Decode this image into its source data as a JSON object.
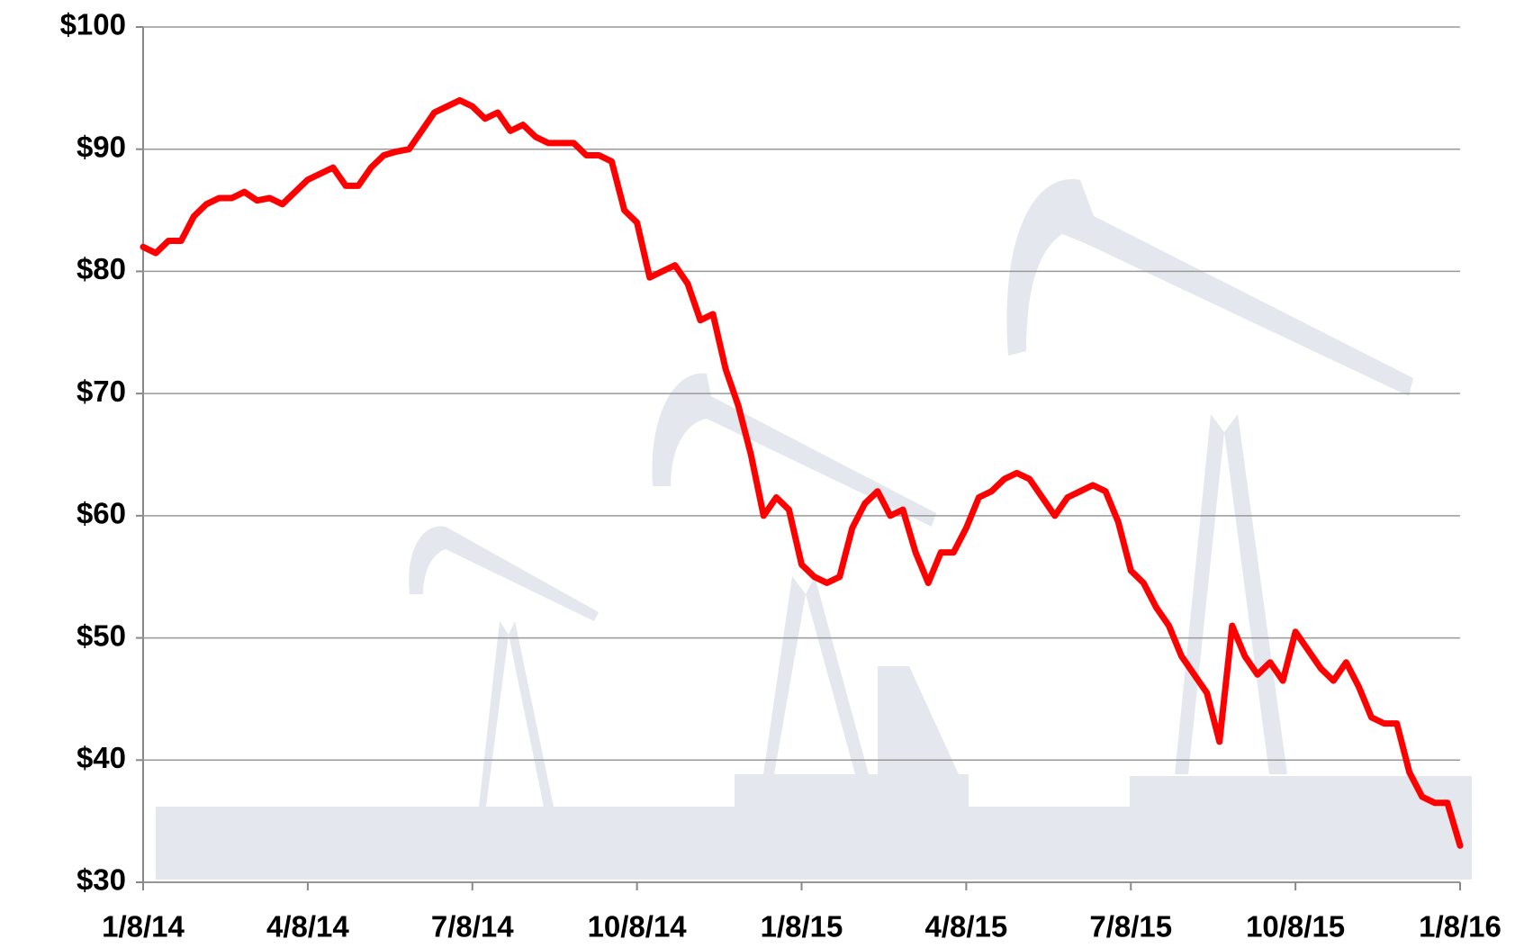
{
  "chart_data": {
    "type": "line",
    "categories": [
      "1/8/14",
      null,
      null,
      null,
      null,
      null,
      null,
      null,
      null,
      null,
      null,
      null,
      null,
      "4/8/14",
      null,
      null,
      null,
      null,
      null,
      null,
      null,
      null,
      null,
      null,
      null,
      null,
      "7/8/14",
      null,
      null,
      null,
      null,
      null,
      null,
      null,
      null,
      null,
      null,
      null,
      null,
      "10/8/14",
      null,
      null,
      null,
      null,
      null,
      null,
      null,
      null,
      null,
      null,
      null,
      null,
      "1/8/15",
      null,
      null,
      null,
      null,
      null,
      null,
      null,
      null,
      null,
      null,
      null,
      null,
      "4/8/15",
      null,
      null,
      null,
      null,
      null,
      null,
      null,
      null,
      null,
      null,
      null,
      null,
      "7/8/15",
      null,
      null,
      null,
      null,
      null,
      null,
      null,
      null,
      null,
      null,
      null,
      null,
      "10/8/15",
      null,
      null,
      null,
      null,
      null,
      null,
      null,
      null,
      null,
      null,
      null,
      null,
      "1/8/16"
    ],
    "series": [
      {
        "color": "#ff0000",
        "values": [
          82,
          81.5,
          82.5,
          82.5,
          84.5,
          85.5,
          86,
          86,
          86.5,
          85.8,
          86,
          85.5,
          86.5,
          87.5,
          88,
          88.5,
          87,
          87,
          88.5,
          89.5,
          89.8,
          90,
          91.5,
          93,
          93.5,
          94,
          93.5,
          92.5,
          93,
          91.5,
          92,
          91,
          90.5,
          90.5,
          90.5,
          89.5,
          89.5,
          89,
          85,
          84,
          79.5,
          80,
          80.5,
          79,
          76,
          76.5,
          72,
          69,
          65,
          60,
          61.5,
          60.5,
          56,
          55,
          54.5,
          55,
          59,
          61,
          62,
          60,
          60.5,
          57,
          54.5,
          57,
          57,
          59,
          61.5,
          62,
          63,
          63.5,
          63,
          61.5,
          60,
          61.5,
          62,
          62.5,
          62,
          59.5,
          55.5,
          54.5,
          52.5,
          51,
          48.5,
          47,
          45.5,
          41.5,
          51,
          48.5,
          47,
          48,
          46.5,
          50.5,
          49,
          47.5,
          46.5,
          48,
          46,
          43.5,
          43,
          43,
          39,
          37,
          36.5,
          36.5,
          33
        ]
      }
    ],
    "ylim": [
      30,
      100
    ],
    "yticks": [
      {
        "value": 30,
        "label": "$30"
      },
      {
        "value": 40,
        "label": "$40"
      },
      {
        "value": 50,
        "label": "$50"
      },
      {
        "value": 60,
        "label": "$60"
      },
      {
        "value": 70,
        "label": "$70"
      },
      {
        "value": 80,
        "label": "$80"
      },
      {
        "value": 90,
        "label": "$90"
      },
      {
        "value": 100,
        "label": "$100"
      }
    ],
    "grid": true
  }
}
